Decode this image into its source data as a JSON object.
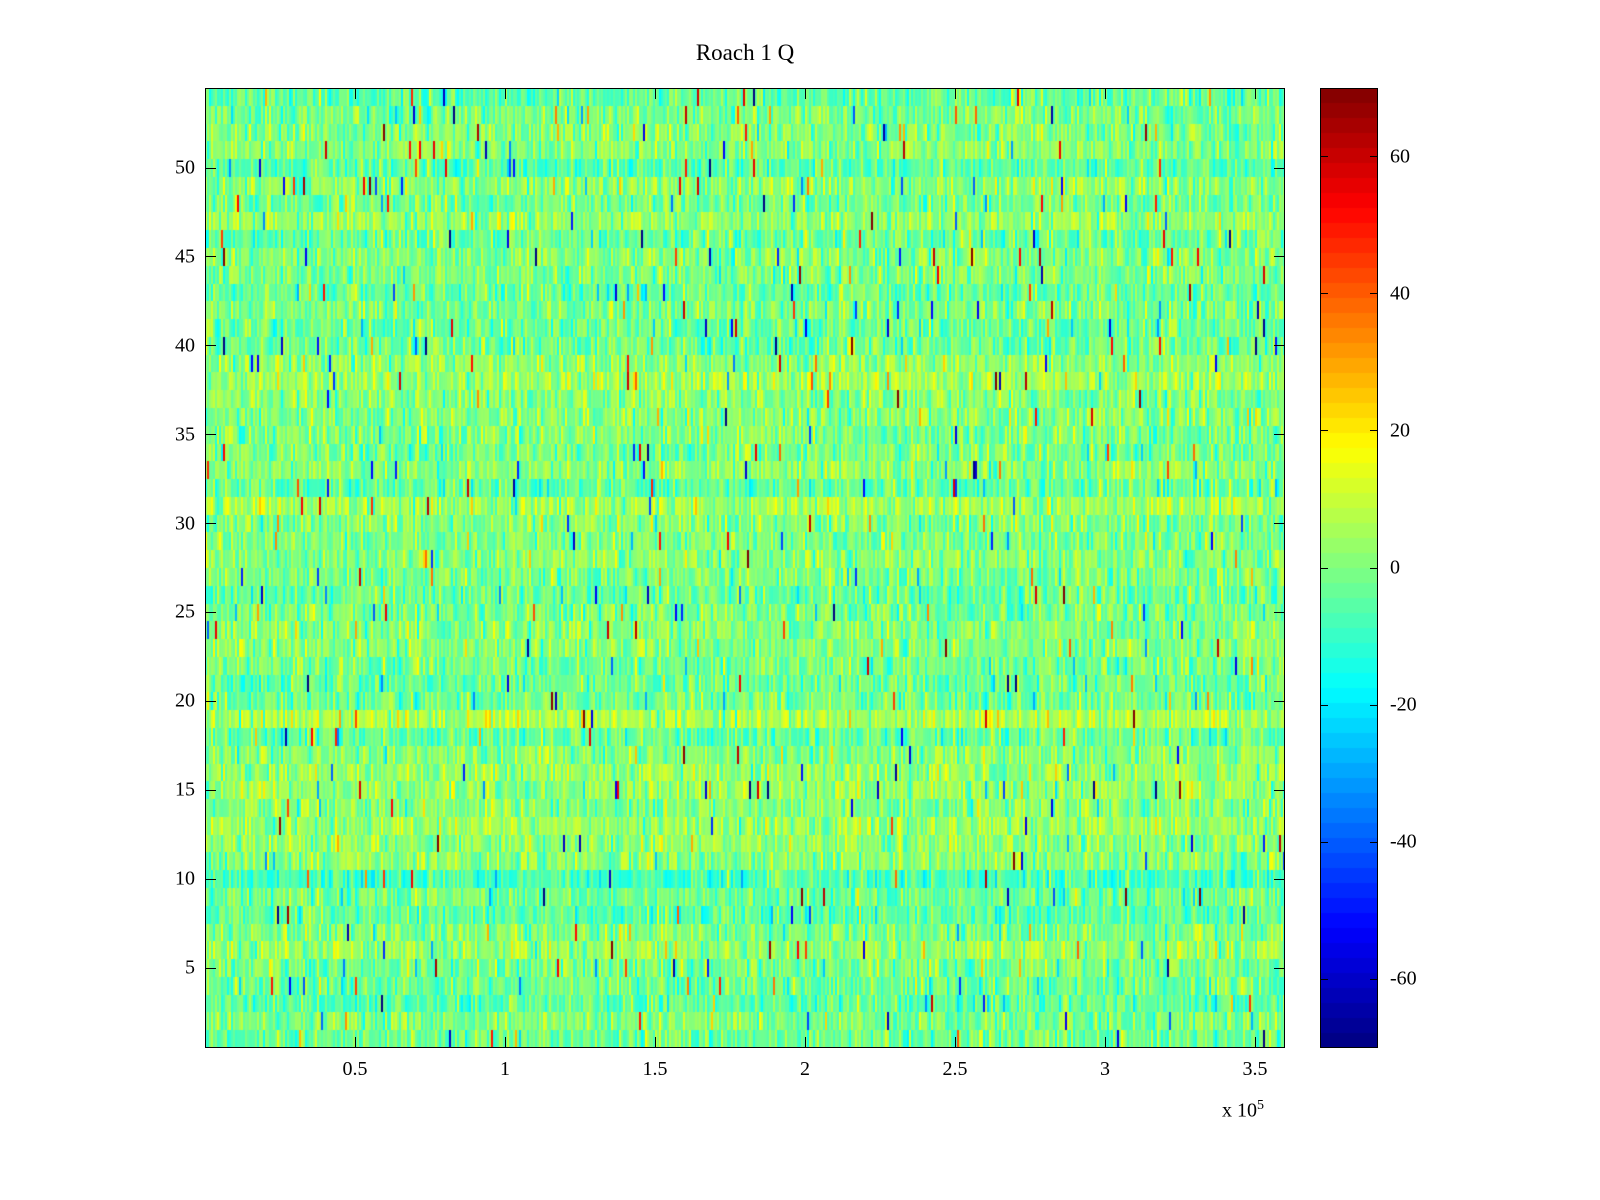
{
  "figure": {
    "title": "Roach 1 Q",
    "background": "#ffffff"
  },
  "chart_data": {
    "type": "heatmap",
    "title": "Roach 1 Q",
    "xlabel": "",
    "ylabel": "",
    "xlim": [
      0,
      3.6
    ],
    "x_scale_prefix": "x 10",
    "x_scale_exponent": "5",
    "x_ticks": [
      0.5,
      1,
      1.5,
      2,
      2.5,
      3,
      3.5
    ],
    "x_tick_labels": [
      "0.5",
      "1",
      "1.5",
      "2",
      "2.5",
      "3",
      "3.5"
    ],
    "ylim": [
      0.5,
      54.5
    ],
    "y_ticks": [
      5,
      10,
      15,
      20,
      25,
      30,
      35,
      40,
      45,
      50
    ],
    "y_tick_labels": [
      "5",
      "10",
      "15",
      "20",
      "25",
      "30",
      "35",
      "40",
      "45",
      "50"
    ],
    "rows": 54,
    "cols": 540,
    "colormap": "jet",
    "clim": [
      -70,
      70
    ],
    "colorbar_tick_values": [
      60,
      40,
      20,
      0,
      -20,
      -40,
      -60
    ],
    "colorbar_tick_labels": [
      "60",
      "40",
      "20",
      "0",
      "-20",
      "-40",
      "-60"
    ],
    "colorbar_levels": 64,
    "data_summary": {
      "description": "dense random noise centered near 0 (green in jet colormap) with sparse positive (yellow/orange/red) and negative (cyan/blue) speckle outliers",
      "mean": 0,
      "std": 7,
      "row_effect_std": 2.5,
      "outlier_fraction": 0.02,
      "outlier_min_magnitude": 15,
      "outlier_max_magnitude": 70,
      "seed": 42
    }
  }
}
